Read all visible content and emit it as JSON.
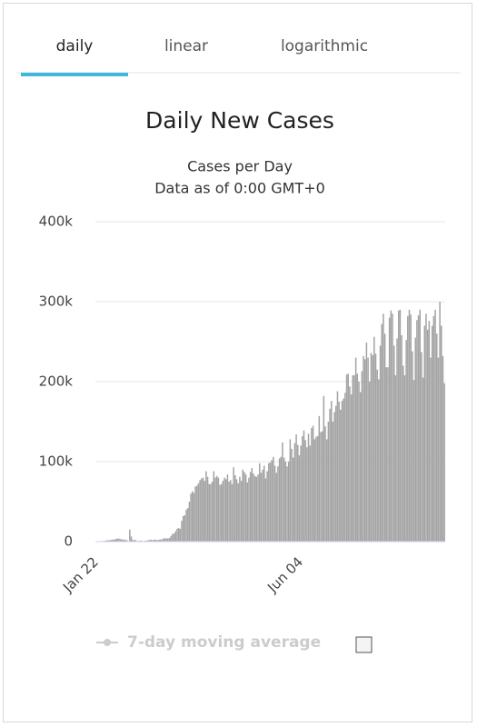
{
  "tabs": [
    {
      "label": "daily",
      "active": true
    },
    {
      "label": "linear",
      "active": false
    },
    {
      "label": "logarithmic",
      "active": false
    }
  ],
  "chart_data": {
    "type": "bar",
    "title": "Daily New Cases",
    "subtitle": [
      "Cases per Day",
      "Data as of 0:00 GMT+0"
    ],
    "color": "#a3a3a3",
    "grid": true,
    "ylim": [
      0,
      400000
    ],
    "yticks": [
      {
        "value": 0,
        "label": "0"
      },
      {
        "value": 100000,
        "label": "100k"
      },
      {
        "value": 200000,
        "label": "200k"
      },
      {
        "value": 300000,
        "label": "300k"
      },
      {
        "value": 400000,
        "label": "400k"
      }
    ],
    "legend": {
      "label": "7-day moving average",
      "color": "#cccccc",
      "checked": false
    },
    "categories": [
      "Jan 22",
      null,
      null,
      null,
      null,
      null,
      null,
      null,
      null,
      null,
      null,
      null,
      null,
      null,
      null,
      null,
      null,
      null,
      null,
      null,
      null,
      null,
      null,
      null,
      null,
      null,
      null,
      null,
      null,
      null,
      null,
      null,
      null,
      null,
      null,
      null,
      null,
      null,
      null,
      null,
      null,
      null,
      null,
      null,
      null,
      null,
      null,
      null,
      null,
      null,
      null,
      null,
      null,
      null,
      null,
      null,
      null,
      null,
      null,
      null,
      null,
      null,
      null,
      null,
      null,
      null,
      null,
      null,
      null,
      null,
      null,
      null,
      null,
      null,
      null,
      null,
      null,
      null,
      null,
      null,
      null,
      null,
      null,
      null,
      null,
      null,
      null,
      null,
      null,
      null,
      null,
      null,
      null,
      null,
      null,
      null,
      null,
      null,
      null,
      null,
      null,
      null,
      null,
      null,
      null,
      null,
      null,
      null,
      null,
      null,
      null,
      null,
      null,
      null,
      null,
      null,
      null,
      null,
      null,
      null,
      null,
      null,
      null,
      null,
      null,
      null,
      null,
      null,
      null,
      null,
      null,
      null,
      null,
      null,
      "Jun 04",
      null,
      null,
      null,
      null,
      null,
      null,
      null,
      null,
      null,
      null,
      null,
      null,
      null,
      null,
      null,
      null,
      null,
      null,
      null,
      null,
      null,
      null,
      null,
      null,
      null,
      null,
      null,
      null,
      null,
      null,
      null,
      null,
      null,
      null,
      null,
      null,
      null,
      null,
      null,
      null,
      null,
      null,
      null,
      null,
      null,
      null,
      null,
      null,
      null,
      null,
      null,
      null,
      null,
      null,
      null,
      null,
      null,
      null,
      null,
      null,
      null,
      null,
      null,
      null,
      null,
      null,
      null,
      null,
      null,
      null,
      null,
      null,
      null,
      null,
      null,
      null,
      null,
      null,
      null,
      null,
      null,
      null,
      null,
      null,
      null,
      null,
      null,
      null,
      null,
      null,
      null,
      null,
      null,
      null
    ],
    "values": [
      500,
      100,
      300,
      600,
      700,
      800,
      1000,
      1800,
      1500,
      2000,
      2100,
      2500,
      2700,
      3200,
      3900,
      3700,
      3100,
      2700,
      2600,
      2100,
      2000,
      400,
      15100,
      6500,
      2100,
      2000,
      1900,
      500,
      1000,
      1200,
      1000,
      600,
      1000,
      1200,
      1700,
      2100,
      2400,
      1800,
      2500,
      2300,
      1900,
      2200,
      2800,
      2600,
      4000,
      4000,
      4100,
      4000,
      4500,
      7100,
      9800,
      10000,
      13000,
      16000,
      17000,
      16000,
      26000,
      32000,
      33000,
      40000,
      42000,
      50000,
      60000,
      63000,
      61000,
      69000,
      70000,
      73000,
      77000,
      79000,
      80000,
      76000,
      88000,
      81000,
      72000,
      72000,
      75000,
      88000,
      80000,
      82000,
      80000,
      71000,
      72000,
      76000,
      80000,
      78000,
      84000,
      75000,
      77000,
      72000,
      93000,
      83000,
      78000,
      73000,
      81000,
      76000,
      90000,
      87000,
      84000,
      74000,
      80000,
      87000,
      92000,
      85000,
      82000,
      81000,
      84000,
      98000,
      86000,
      90000,
      95000,
      79000,
      88000,
      98000,
      99000,
      102000,
      106000,
      95000,
      86000,
      94000,
      104000,
      106000,
      124000,
      105000,
      100000,
      94000,
      100000,
      128000,
      116000,
      105000,
      123000,
      134000,
      121000,
      108000,
      120000,
      132000,
      139000,
      127000,
      118000,
      135000,
      120000,
      142000,
      145000,
      128000,
      131000,
      132000,
      157000,
      137000,
      138000,
      182000,
      144000,
      128000,
      150000,
      166000,
      176000,
      150000,
      162000,
      170000,
      188000,
      175000,
      165000,
      176000,
      179000,
      186000,
      209000,
      210000,
      194000,
      184000,
      208000,
      208000,
      230000,
      210000,
      200000,
      187000,
      213000,
      232000,
      228000,
      249000,
      230000,
      200000,
      236000,
      233000,
      256000,
      235000,
      215000,
      203000,
      245000,
      272000,
      285000,
      260000,
      218000,
      218000,
      280000,
      289000,
      285000,
      245000,
      208000,
      254000,
      289000,
      290000,
      258000,
      220000,
      208000,
      252000,
      282000,
      290000,
      284000,
      238000,
      202000,
      255000,
      277000,
      283000,
      290000,
      237000,
      205000,
      270000,
      285000,
      265000,
      276000,
      230000,
      270000,
      282000,
      290000,
      260000,
      230000,
      300000,
      270000,
      232000,
      198000
    ]
  }
}
